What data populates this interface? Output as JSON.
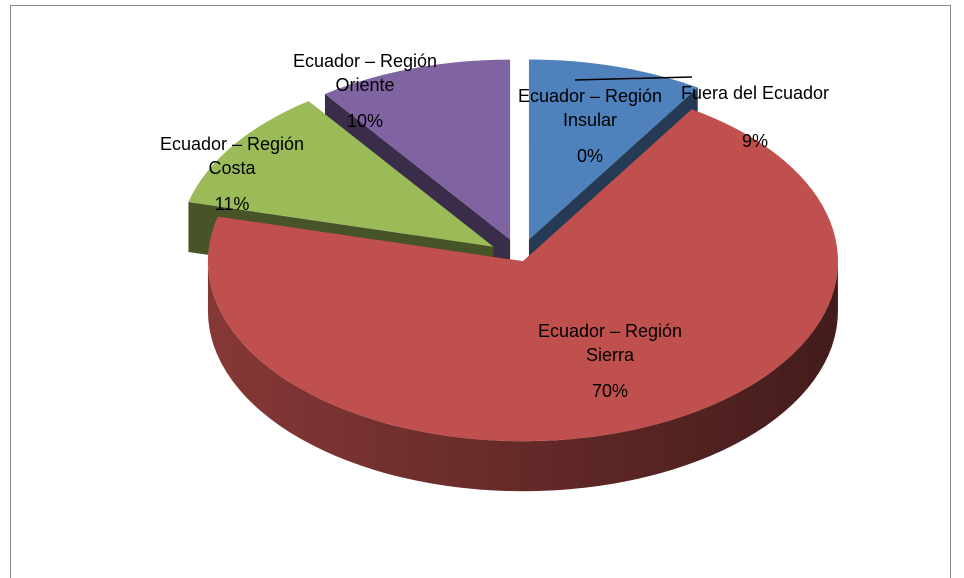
{
  "chart_data": {
    "type": "pie3d",
    "categories": [
      "Fuera del Ecuador",
      "Ecuador – Región Sierra",
      "Ecuador – Región Costa",
      "Ecuador – Región Oriente",
      "Ecuador – Región Insular"
    ],
    "values": [
      9,
      70,
      11,
      10,
      0
    ],
    "value_labels": [
      "9%",
      "70%",
      "11%",
      "10%",
      "0%"
    ],
    "colors": [
      "#4f81bd",
      "#c0504d",
      "#9bbb59",
      "#8064a2",
      "#4bacc6"
    ]
  }
}
